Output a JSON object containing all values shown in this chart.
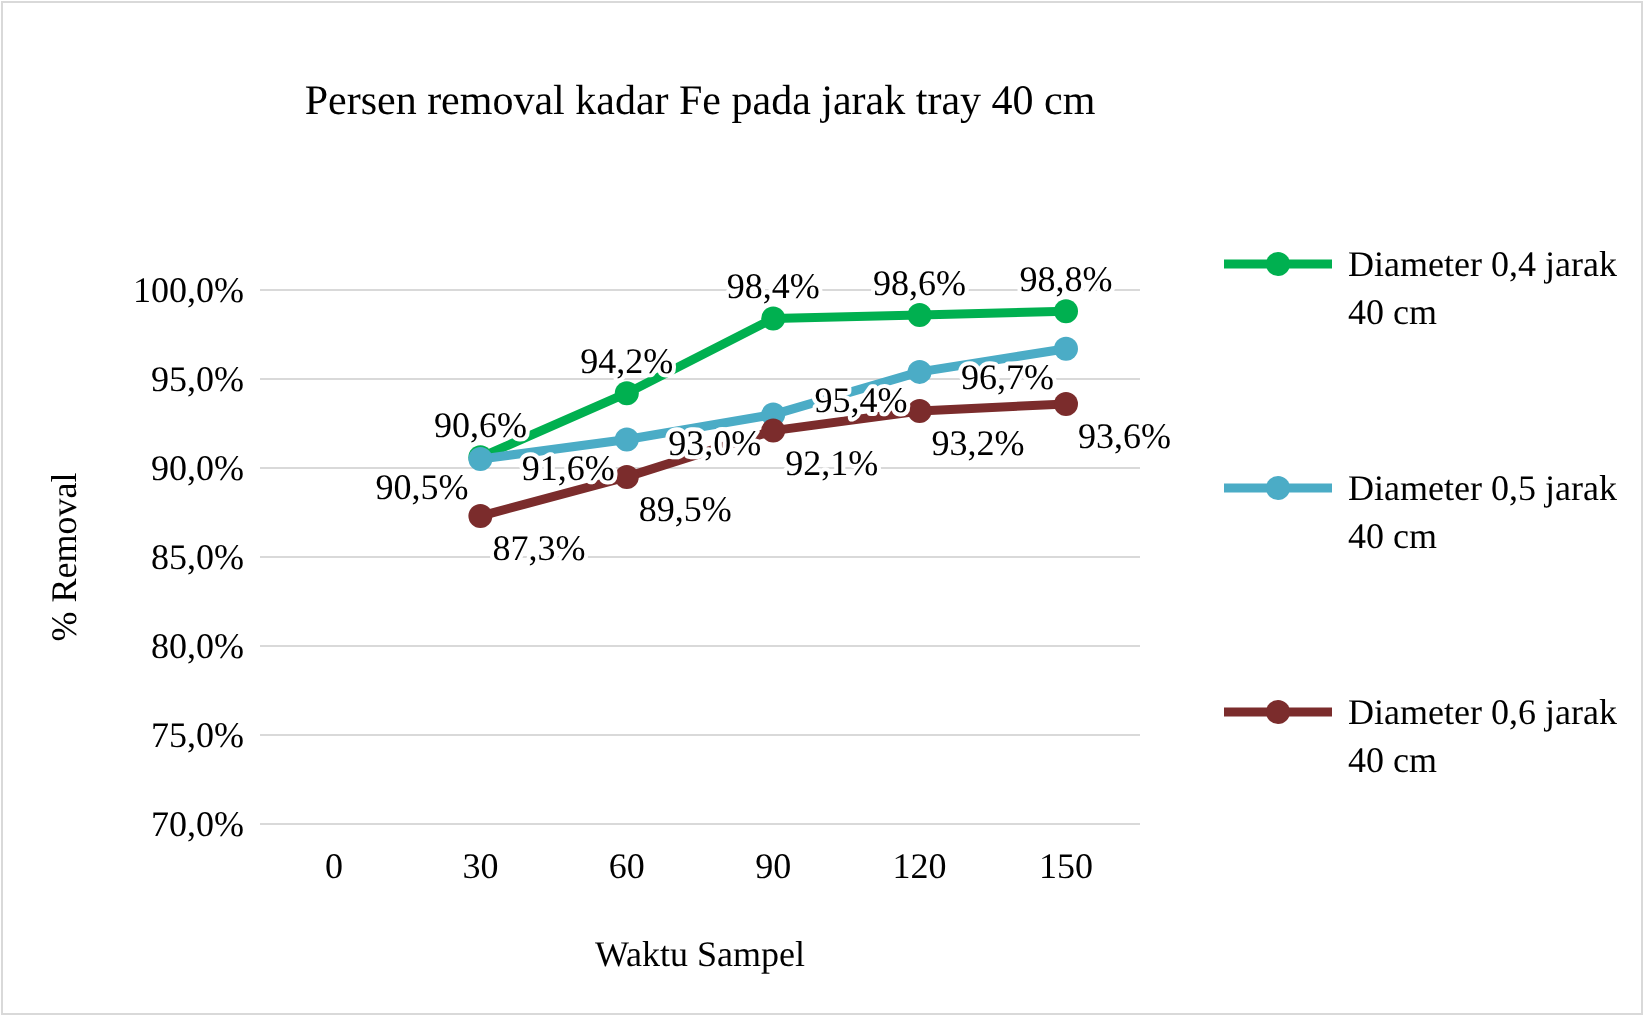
{
  "chart_data": {
    "type": "line",
    "title": "Persen removal kadar Fe pada jarak tray 40 cm",
    "xlabel": "Waktu Sampel",
    "ylabel": "% Removal",
    "categories": [
      "0",
      "30",
      "60",
      "90",
      "120",
      "150"
    ],
    "ylim": [
      70,
      100
    ],
    "yticks": [
      {
        "value": 70,
        "label": "70,0%"
      },
      {
        "value": 75,
        "label": "75,0%"
      },
      {
        "value": 80,
        "label": "80,0%"
      },
      {
        "value": 85,
        "label": "85,0%"
      },
      {
        "value": 90,
        "label": "90,0%"
      },
      {
        "value": 95,
        "label": "95,0%"
      },
      {
        "value": 100,
        "label": "100,0%"
      }
    ],
    "grid": "y",
    "legend": "right",
    "marker": "circle",
    "line_style": "solid",
    "series": [
      {
        "name": "Diameter 0,4 jarak 40 cm",
        "color": "#00b050",
        "values": [
          null,
          90.6,
          94.2,
          98.4,
          98.6,
          98.8
        ],
        "value_labels": [
          null,
          "90,6%",
          "94,2%",
          "98,4%",
          "98,6%",
          "98,8%"
        ]
      },
      {
        "name": "Diameter 0,5 jarak 40 cm",
        "color": "#4bacc6",
        "values": [
          null,
          90.5,
          91.6,
          93.0,
          95.4,
          96.7
        ],
        "value_labels": [
          null,
          "90,5%",
          "91,6%",
          "93,0%",
          "95,4%",
          "96,7%"
        ]
      },
      {
        "name": "Diameter 0,6 jarak 40 cm",
        "color": "#7b2c2c",
        "values": [
          null,
          87.3,
          89.5,
          92.1,
          93.2,
          93.6
        ],
        "value_labels": [
          null,
          "87,3%",
          "89,5%",
          "92,1%",
          "93,2%",
          "93,6%"
        ]
      }
    ]
  }
}
